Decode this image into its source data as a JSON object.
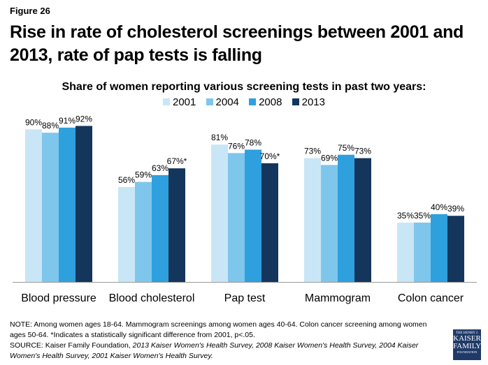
{
  "figure_label": "Figure 26",
  "title": "Rise in rate of cholesterol screenings between 2001 and 2013, rate of pap tests is falling",
  "chart_data": {
    "type": "bar",
    "title": "Share of women reporting various screening tests in past two years:",
    "categories": [
      "Blood pressure",
      "Blood cholesterol",
      "Pap test",
      "Mammogram",
      "Colon cancer"
    ],
    "series": [
      {
        "name": "2001",
        "color": "#c9e6f7",
        "values": [
          90,
          56,
          81,
          73,
          35
        ],
        "labels": [
          "90%",
          "56%",
          "81%",
          "73%",
          "35%"
        ]
      },
      {
        "name": "2004",
        "color": "#7fc6ec",
        "values": [
          88,
          59,
          76,
          69,
          35
        ],
        "labels": [
          "88%",
          "59%",
          "76%",
          "69%",
          "35%"
        ]
      },
      {
        "name": "2008",
        "color": "#2fa0de",
        "values": [
          91,
          63,
          78,
          75,
          40
        ],
        "labels": [
          "91%",
          "63%",
          "78%",
          "75%",
          "40%"
        ]
      },
      {
        "name": "2013",
        "color": "#14365c",
        "values": [
          92,
          67,
          70,
          73,
          39
        ],
        "labels": [
          "92%",
          "67%*",
          "70%*",
          "73%",
          "39%"
        ]
      }
    ],
    "ylim": [
      0,
      100
    ],
    "grid": false,
    "legend": "top"
  },
  "note": "NOTE: Among women ages 18-64. Mammogram screenings among women ages 40-64. Colon cancer screening among women ages 50-64. *Indicates a statistically significant difference from 2001, p<.05.",
  "source_prefix": "SOURCE: Kaiser Family Foundation, ",
  "source_italic": "2013 Kaiser Women's Health Survey, 2008 Kaiser Women's Health Survey, 2004 Kaiser Women's Health Survey, 2001 Kaiser Women's Health Survey.",
  "logo": {
    "line1": "THE HENRY J.",
    "line2": "KAISER",
    "line3": "FAMILY",
    "line4": "FOUNDATION"
  }
}
